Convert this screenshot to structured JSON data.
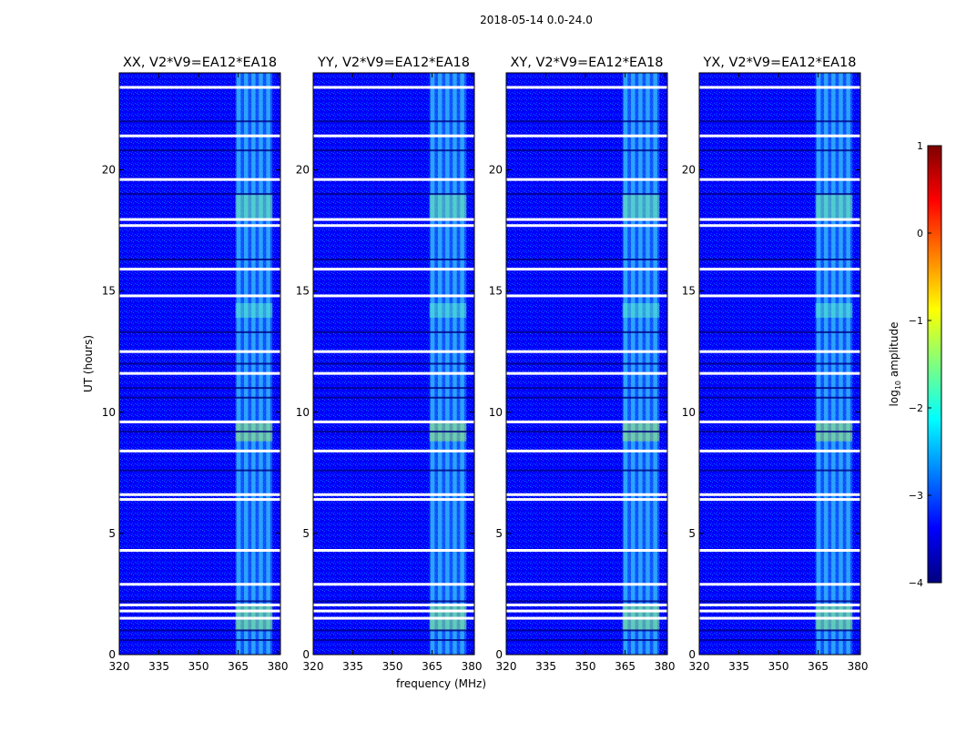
{
  "figure_title": "2018-05-14 0.0-24.0",
  "colorbar": {
    "label": "log10 amplitude",
    "label_base": "log",
    "label_sub": "10",
    "label_rest": " amplitude",
    "min": -4,
    "max": 1,
    "ticks": [
      1,
      0,
      -1,
      -2,
      -3,
      -4
    ],
    "tick_labels": [
      "1",
      "0",
      "−1",
      "−2",
      "−3",
      "−4"
    ],
    "colormap": "jet",
    "colors": [
      "#00007f",
      "#0000ff",
      "#007fff",
      "#00ffff",
      "#7fff7f",
      "#ffff00",
      "#ff7f00",
      "#ff0000",
      "#7f0000"
    ]
  },
  "chart_data": [
    {
      "type": "heatmap",
      "title": "XX, V2*V9=EA12*EA18",
      "xlabel": "",
      "ylabel": "UT (hours)",
      "xlim": [
        320,
        381
      ],
      "ylim": [
        0,
        24
      ],
      "xticks": [
        320,
        335,
        350,
        365,
        380
      ],
      "xtick_labels": [
        "320",
        "335",
        "350",
        "365",
        "380"
      ],
      "yticks": [
        0,
        5,
        10,
        15,
        20
      ],
      "ytick_labels": [
        "0",
        "5",
        "10",
        "15",
        "20"
      ],
      "background_log_amp": -3.3,
      "rfi_band_mhz": [
        364,
        378
      ],
      "flagged_hours": [
        1.5,
        1.8,
        2.05,
        2.9,
        4.3,
        6.4,
        6.6,
        8.4,
        9.6,
        11.6,
        12.5,
        14.8,
        15.9,
        17.7,
        17.95,
        19.6,
        21.4,
        23.4
      ]
    },
    {
      "type": "heatmap",
      "title": "YY, V2*V9=EA12*EA18",
      "xlabel": "frequency (MHz)",
      "ylabel": "",
      "xlim": [
        320,
        381
      ],
      "ylim": [
        0,
        24
      ],
      "xticks": [
        320,
        335,
        350,
        365,
        380
      ],
      "xtick_labels": [
        "320",
        "335",
        "350",
        "365",
        "380"
      ],
      "yticks": [
        0,
        5,
        10,
        15,
        20
      ],
      "ytick_labels": [
        "0",
        "5",
        "10",
        "15",
        "20"
      ],
      "background_log_amp": -3.3,
      "rfi_band_mhz": [
        364,
        378
      ],
      "flagged_hours": [
        1.5,
        1.8,
        2.05,
        2.9,
        4.3,
        6.4,
        6.6,
        8.4,
        9.6,
        11.6,
        12.5,
        14.8,
        15.9,
        17.7,
        17.95,
        19.6,
        21.4,
        23.4
      ]
    },
    {
      "type": "heatmap",
      "title": "XY, V2*V9=EA12*EA18",
      "xlabel": "",
      "ylabel": "",
      "xlim": [
        320,
        381
      ],
      "ylim": [
        0,
        24
      ],
      "xticks": [
        320,
        335,
        350,
        365,
        380
      ],
      "xtick_labels": [
        "320",
        "335",
        "350",
        "365",
        "380"
      ],
      "yticks": [
        0,
        5,
        10,
        15,
        20
      ],
      "ytick_labels": [
        "0",
        "5",
        "10",
        "15",
        "20"
      ],
      "background_log_amp": -3.3,
      "rfi_band_mhz": [
        364,
        378
      ],
      "flagged_hours": [
        1.5,
        1.8,
        2.05,
        2.9,
        4.3,
        6.4,
        6.6,
        8.4,
        9.6,
        11.6,
        12.5,
        14.8,
        15.9,
        17.7,
        17.95,
        19.6,
        21.4,
        23.4
      ]
    },
    {
      "type": "heatmap",
      "title": "YX, V2*V9=EA12*EA18",
      "xlabel": "",
      "ylabel": "",
      "xlim": [
        320,
        381
      ],
      "ylim": [
        0,
        24
      ],
      "xticks": [
        320,
        335,
        350,
        365,
        380
      ],
      "xtick_labels": [
        "320",
        "335",
        "350",
        "365",
        "380"
      ],
      "yticks": [
        0,
        5,
        10,
        15,
        20
      ],
      "ytick_labels": [
        "0",
        "5",
        "10",
        "15",
        "20"
      ],
      "background_log_amp": -3.3,
      "rfi_band_mhz": [
        364,
        378
      ],
      "flagged_hours": [
        1.5,
        1.8,
        2.05,
        2.9,
        4.3,
        6.4,
        6.6,
        8.4,
        9.6,
        11.6,
        12.5,
        14.8,
        15.9,
        17.7,
        17.95,
        19.6,
        21.4,
        23.4
      ]
    }
  ]
}
